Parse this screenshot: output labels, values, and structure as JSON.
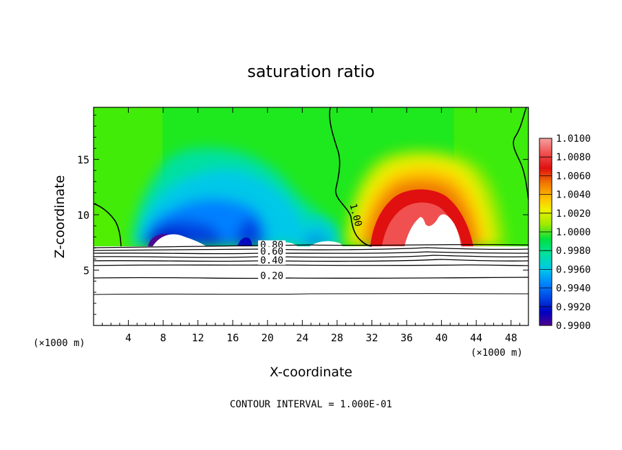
{
  "chart_data": {
    "type": "heatmap",
    "title": "saturation ratio",
    "xlabel": "X-coordinate",
    "ylabel": "Z-coordinate",
    "x_unit_label": "(×1000 m)",
    "y_unit_label": "(×1000 m)",
    "xlim": [
      0,
      50
    ],
    "ylim": [
      0,
      19.7
    ],
    "x_ticks": [
      "4",
      "8",
      "12",
      "16",
      "20",
      "24",
      "28",
      "32",
      "36",
      "40",
      "44",
      "48"
    ],
    "y_ticks": [
      "5",
      "10",
      "15"
    ],
    "footer": "CONTOUR INTERVAL = 1.000E-01",
    "colorbar": {
      "labels": [
        "1.0100",
        "1.0080",
        "1.0060",
        "1.0040",
        "1.0020",
        "1.0000",
        "0.9980",
        "0.9960",
        "0.9940",
        "0.9920",
        "0.9900"
      ],
      "colors": [
        "#f5a0a0",
        "#f05050",
        "#e01010",
        "#f07800",
        "#ffc000",
        "#f0f000",
        "#a0ea00",
        "#00e040",
        "#00e0a0",
        "#00c8e8",
        "#0080ff",
        "#0040e0",
        "#0000c0",
        "#500090"
      ]
    },
    "contour_labels": [
      {
        "text": "0.80",
        "x": 20.5,
        "z": 7.0
      },
      {
        "text": "0.60",
        "x": 20.5,
        "z": 6.4
      },
      {
        "text": "0.40",
        "x": 20.5,
        "z": 5.6
      },
      {
        "text": "0.20",
        "x": 20.5,
        "z": 4.2
      },
      {
        "text": "1.00",
        "x": 29.8,
        "z": 9.9
      }
    ],
    "features": [
      {
        "label": "supersaturated dome",
        "x_center": 39.5,
        "z_peak": 14.7,
        "max": 1.0095
      },
      {
        "label": "subsaturated region",
        "x_range": [
          5,
          30
        ],
        "z_range": [
          7.4,
          16
        ],
        "min": 0.99
      }
    ]
  }
}
